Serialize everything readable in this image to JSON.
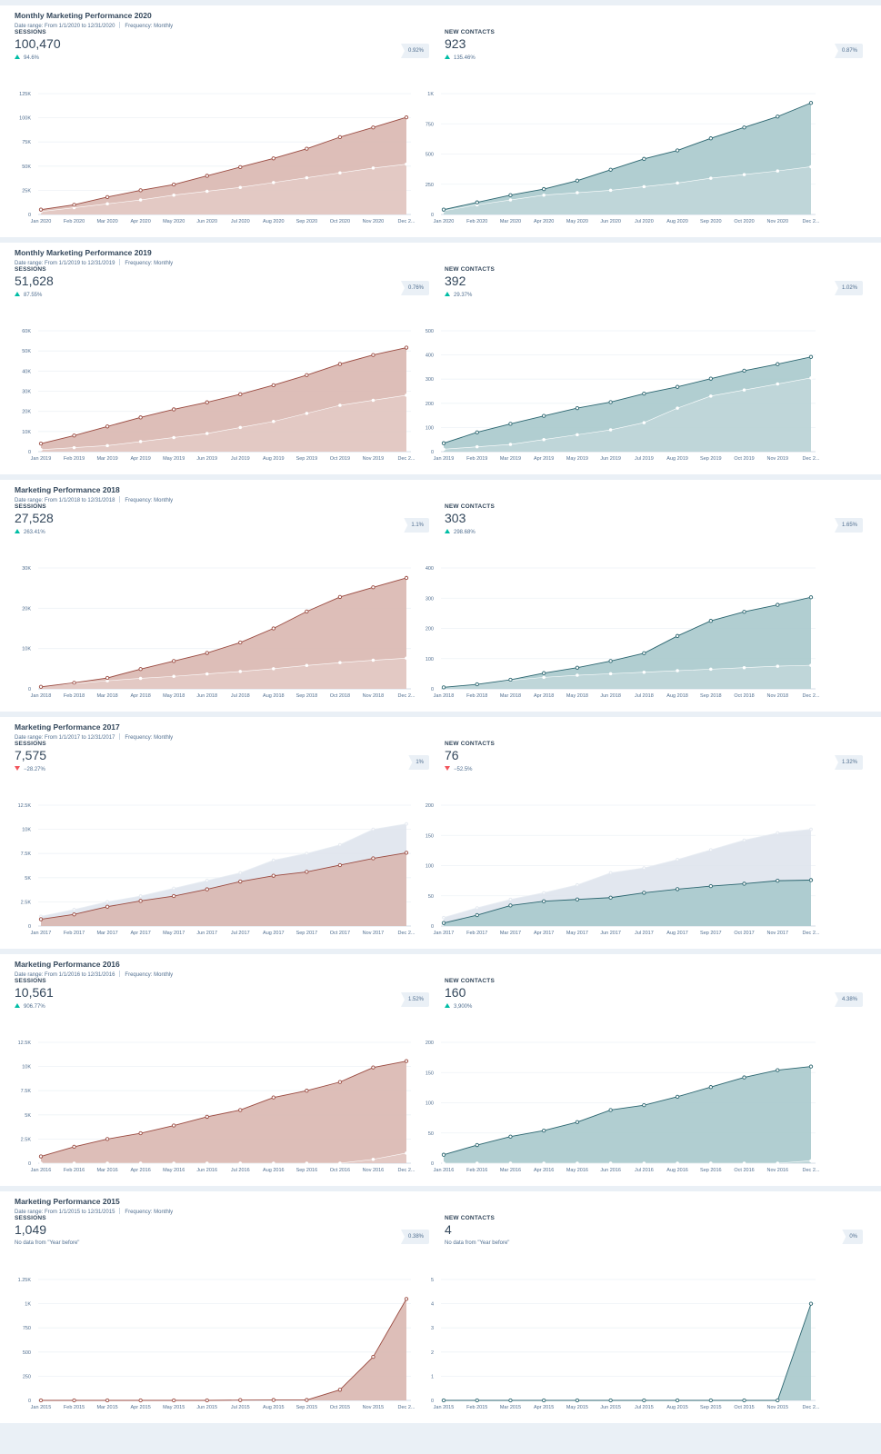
{
  "colors": {
    "sessions_line": "#9a4a40",
    "sessions_fill": "#d9b7b0",
    "contacts_line": "#2c6670",
    "contacts_fill": "#a8c9cc",
    "prev_fill": "#dde3ec",
    "up": "#00bda5",
    "down": "#f2545b"
  },
  "reports": [
    {
      "title": "Monthly Marketing Performance 2020",
      "date_range": "Date range: From 1/1/2020 to 12/31/2020",
      "frequency": "Frequency: Monthly",
      "left": {
        "label": "SESSIONS",
        "value": "100,470",
        "change": "94.6%",
        "direction": "up",
        "note": "",
        "badge": "0.92%"
      },
      "right": {
        "label": "NEW CONTACTS",
        "value": "923",
        "change": "135.46%",
        "direction": "up",
        "note": "",
        "badge": "0.87%"
      }
    },
    {
      "title": "Monthly Marketing Performance 2019",
      "date_range": "Date range: From 1/1/2019 to 12/31/2019",
      "frequency": "Frequency: Monthly",
      "left": {
        "label": "SESSIONS",
        "value": "51,628",
        "change": "87.55%",
        "direction": "up",
        "note": "",
        "badge": "0.76%"
      },
      "right": {
        "label": "NEW CONTACTS",
        "value": "392",
        "change": "29.37%",
        "direction": "up",
        "note": "",
        "badge": "1.02%"
      }
    },
    {
      "title": "Marketing Performance 2018",
      "date_range": "Date range: From 1/1/2018 to 12/31/2018",
      "frequency": "Frequency: Monthly",
      "left": {
        "label": "SESSIONS",
        "value": "27,528",
        "change": "263.41%",
        "direction": "up",
        "note": "",
        "badge": "1.1%"
      },
      "right": {
        "label": "NEW CONTACTS",
        "value": "303",
        "change": "298.68%",
        "direction": "up",
        "note": "",
        "badge": "1.65%"
      }
    },
    {
      "title": "Marketing Performance 2017",
      "date_range": "Date range: From 1/1/2017 to 12/31/2017",
      "frequency": "Frequency: Monthly",
      "left": {
        "label": "SESSIONS",
        "value": "7,575",
        "change": "−28.27%",
        "direction": "down",
        "note": "",
        "badge": "1%"
      },
      "right": {
        "label": "NEW CONTACTS",
        "value": "76",
        "change": "−52.5%",
        "direction": "down",
        "note": "",
        "badge": "1.32%"
      }
    },
    {
      "title": "Marketing Performance 2016",
      "date_range": "Date range: From 1/1/2016 to 12/31/2016",
      "frequency": "Frequency: Monthly",
      "left": {
        "label": "SESSIONS",
        "value": "10,561",
        "change": "906.77%",
        "direction": "up",
        "note": "",
        "badge": "1.52%"
      },
      "right": {
        "label": "NEW CONTACTS",
        "value": "160",
        "change": "3,900%",
        "direction": "up",
        "note": "",
        "badge": "4.38%"
      }
    },
    {
      "title": "Marketing Performance 2015",
      "date_range": "Date range: From 1/1/2015 to 12/31/2015",
      "frequency": "Frequency: Monthly",
      "left": {
        "label": "SESSIONS",
        "value": "1,049",
        "change": "",
        "direction": "",
        "note": "No data from \"Year before\"",
        "badge": "0.38%"
      },
      "right": {
        "label": "NEW CONTACTS",
        "value": "4",
        "change": "",
        "direction": "",
        "note": "No data from \"Year before\"",
        "badge": "0%"
      }
    }
  ],
  "chart_data": [
    {
      "type": "area",
      "metric": "sessions",
      "x": [
        "Jan 2020",
        "Feb 2020",
        "Mar 2020",
        "Apr 2020",
        "May 2020",
        "Jun 2020",
        "Jul 2020",
        "Aug 2020",
        "Sep 2020",
        "Oct 2020",
        "Nov 2020",
        "Dec 2..."
      ],
      "ylim": [
        0,
        125000
      ],
      "yticks": [
        0,
        25000,
        50000,
        75000,
        100000,
        125000
      ],
      "ytick_labels": [
        "0",
        "25K",
        "50K",
        "75K",
        "100K",
        "125K"
      ],
      "series": [
        {
          "values": [
            5000,
            10000,
            18000,
            25000,
            31000,
            40000,
            49000,
            58000,
            68000,
            80000,
            90000,
            100470
          ]
        },
        {
          "values": [
            3000,
            7000,
            11000,
            15000,
            20000,
            24000,
            28000,
            33000,
            38000,
            43000,
            48000,
            52000
          ]
        }
      ]
    },
    {
      "type": "area",
      "metric": "new_contacts",
      "x": [
        "Jan 2020",
        "Feb 2020",
        "Mar 2020",
        "Apr 2020",
        "May 2020",
        "Jun 2020",
        "Jul 2020",
        "Aug 2020",
        "Sep 2020",
        "Oct 2020",
        "Nov 2020",
        "Dec 2..."
      ],
      "ylim": [
        0,
        1000
      ],
      "yticks": [
        0,
        250,
        500,
        750,
        1000
      ],
      "ytick_labels": [
        "0",
        "250",
        "500",
        "750",
        "1K"
      ],
      "series": [
        {
          "values": [
            40,
            100,
            160,
            210,
            280,
            370,
            460,
            530,
            630,
            720,
            810,
            923
          ]
        },
        {
          "values": [
            30,
            80,
            120,
            160,
            180,
            200,
            230,
            260,
            300,
            330,
            360,
            395
          ]
        }
      ]
    },
    {
      "type": "area",
      "metric": "sessions",
      "x": [
        "Jan 2019",
        "Feb 2019",
        "Mar 2019",
        "Apr 2019",
        "May 2019",
        "Jun 2019",
        "Jul 2019",
        "Aug 2019",
        "Sep 2019",
        "Oct 2019",
        "Nov 2019",
        "Dec 2..."
      ],
      "ylim": [
        0,
        60000
      ],
      "yticks": [
        0,
        10000,
        20000,
        30000,
        40000,
        50000,
        60000
      ],
      "ytick_labels": [
        "0",
        "10K",
        "20K",
        "30K",
        "40K",
        "50K",
        "60K"
      ],
      "series": [
        {
          "values": [
            4000,
            8000,
            12500,
            17000,
            21000,
            24500,
            28500,
            33000,
            38000,
            43500,
            48000,
            51628
          ]
        },
        {
          "values": [
            1000,
            2000,
            3000,
            5000,
            7000,
            9000,
            12000,
            15000,
            19000,
            23000,
            25500,
            28000
          ]
        }
      ]
    },
    {
      "type": "area",
      "metric": "new_contacts",
      "x": [
        "Jan 2019",
        "Feb 2019",
        "Mar 2019",
        "Apr 2019",
        "May 2019",
        "Jun 2019",
        "Jul 2019",
        "Aug 2019",
        "Sep 2019",
        "Oct 2019",
        "Nov 2019",
        "Dec 2..."
      ],
      "ylim": [
        0,
        500
      ],
      "yticks": [
        0,
        100,
        200,
        300,
        400,
        500
      ],
      "ytick_labels": [
        "0",
        "100",
        "200",
        "300",
        "400",
        "500"
      ],
      "series": [
        {
          "values": [
            35,
            80,
            115,
            148,
            180,
            205,
            240,
            268,
            302,
            335,
            362,
            392
          ]
        },
        {
          "values": [
            10,
            20,
            30,
            50,
            70,
            90,
            120,
            180,
            230,
            255,
            280,
            305
          ]
        }
      ]
    },
    {
      "type": "area",
      "metric": "sessions",
      "x": [
        "Jan 2018",
        "Feb 2018",
        "Mar 2018",
        "Apr 2018",
        "May 2018",
        "Jun 2018",
        "Jul 2018",
        "Aug 2018",
        "Sep 2018",
        "Oct 2018",
        "Nov 2018",
        "Dec 2..."
      ],
      "ylim": [
        0,
        30000
      ],
      "yticks": [
        0,
        10000,
        20000,
        30000
      ],
      "ytick_labels": [
        "0",
        "10K",
        "20K",
        "30K"
      ],
      "series": [
        {
          "values": [
            500,
            1500,
            2700,
            4900,
            6900,
            8900,
            11500,
            15000,
            19200,
            22800,
            25200,
            27528
          ]
        },
        {
          "values": [
            700,
            1300,
            2000,
            2600,
            3100,
            3700,
            4300,
            5000,
            5800,
            6500,
            7100,
            7600
          ]
        }
      ]
    },
    {
      "type": "area",
      "metric": "new_contacts",
      "x": [
        "Jan 2018",
        "Feb 2018",
        "Mar 2018",
        "Apr 2018",
        "May 2018",
        "Jun 2018",
        "Jul 2018",
        "Aug 2018",
        "Sep 2018",
        "Oct 2018",
        "Nov 2018",
        "Dec 2..."
      ],
      "ylim": [
        0,
        400
      ],
      "yticks": [
        0,
        100,
        200,
        300,
        400
      ],
      "ytick_labels": [
        "0",
        "100",
        "200",
        "300",
        "400"
      ],
      "series": [
        {
          "values": [
            5,
            15,
            30,
            52,
            70,
            92,
            118,
            175,
            225,
            255,
            278,
            303
          ]
        },
        {
          "values": [
            8,
            18,
            28,
            38,
            45,
            50,
            55,
            60,
            65,
            70,
            75,
            78
          ]
        }
      ]
    },
    {
      "type": "area",
      "metric": "sessions",
      "x": [
        "Jan 2017",
        "Feb 2017",
        "Mar 2017",
        "Apr 2017",
        "May 2017",
        "Jun 2017",
        "Jul 2017",
        "Aug 2017",
        "Sep 2017",
        "Oct 2017",
        "Nov 2017",
        "Dec 2..."
      ],
      "ylim": [
        0,
        12500
      ],
      "yticks": [
        0,
        2500,
        5000,
        7500,
        10000,
        12500
      ],
      "ytick_labels": [
        "0",
        "2.5K",
        "5K",
        "7.5K",
        "10K",
        "12.5K"
      ],
      "series": [
        {
          "values": [
            700,
            1200,
            2000,
            2600,
            3100,
            3800,
            4600,
            5200,
            5600,
            6300,
            7000,
            7575
          ]
        },
        {
          "values": [
            1000,
            1700,
            2500,
            3100,
            3900,
            4700,
            5500,
            6800,
            7500,
            8400,
            10000,
            10561
          ]
        }
      ]
    },
    {
      "type": "area",
      "metric": "new_contacts",
      "x": [
        "Jan 2017",
        "Feb 2017",
        "Mar 2017",
        "Apr 2017",
        "May 2017",
        "Jun 2017",
        "Jul 2017",
        "Aug 2017",
        "Sep 2017",
        "Oct 2017",
        "Nov 2017",
        "Dec 2..."
      ],
      "ylim": [
        0,
        200
      ],
      "yticks": [
        0,
        50,
        100,
        150,
        200
      ],
      "ytick_labels": [
        "0",
        "50",
        "100",
        "150",
        "200"
      ],
      "series": [
        {
          "values": [
            5,
            18,
            34,
            41,
            44,
            47,
            55,
            61,
            66,
            70,
            75,
            76
          ]
        },
        {
          "values": [
            14,
            30,
            44,
            55,
            68,
            88,
            96,
            110,
            126,
            142,
            154,
            160
          ]
        }
      ]
    },
    {
      "type": "area",
      "metric": "sessions",
      "x": [
        "Jan 2016",
        "Feb 2016",
        "Mar 2016",
        "Apr 2016",
        "May 2016",
        "Jun 2016",
        "Jul 2016",
        "Aug 2016",
        "Sep 2016",
        "Oct 2016",
        "Nov 2016",
        "Dec 2..."
      ],
      "ylim": [
        0,
        12500
      ],
      "yticks": [
        0,
        2500,
        5000,
        7500,
        10000,
        12500
      ],
      "ytick_labels": [
        "0",
        "2.5K",
        "5K",
        "7.5K",
        "10K",
        "12.5K"
      ],
      "series": [
        {
          "values": [
            700,
            1700,
            2500,
            3100,
            3900,
            4800,
            5500,
            6800,
            7500,
            8400,
            9900,
            10561
          ]
        },
        {
          "values": [
            0,
            0,
            0,
            0,
            0,
            0,
            0,
            0,
            0,
            0,
            400,
            1049
          ]
        }
      ]
    },
    {
      "type": "area",
      "metric": "new_contacts",
      "x": [
        "Jan 2016",
        "Feb 2016",
        "Mar 2016",
        "Apr 2016",
        "May 2016",
        "Jun 2016",
        "Jul 2016",
        "Aug 2016",
        "Sep 2016",
        "Oct 2016",
        "Nov 2016",
        "Dec 2..."
      ],
      "ylim": [
        0,
        200
      ],
      "yticks": [
        0,
        50,
        100,
        150,
        200
      ],
      "ytick_labels": [
        "0",
        "50",
        "100",
        "150",
        "200"
      ],
      "series": [
        {
          "values": [
            14,
            30,
            44,
            54,
            68,
            88,
            96,
            110,
            126,
            142,
            154,
            160
          ]
        },
        {
          "values": [
            0,
            0,
            0,
            0,
            0,
            0,
            0,
            0,
            0,
            0,
            0,
            4
          ]
        }
      ]
    },
    {
      "type": "area",
      "metric": "sessions",
      "x": [
        "Jan 2015",
        "Feb 2015",
        "Mar 2015",
        "Apr 2015",
        "May 2015",
        "Jun 2015",
        "Jul 2015",
        "Aug 2015",
        "Sep 2015",
        "Oct 2015",
        "Nov 2015",
        "Dec 2..."
      ],
      "ylim": [
        0,
        1250
      ],
      "yticks": [
        0,
        250,
        500,
        750,
        1000,
        1250
      ],
      "ytick_labels": [
        "0",
        "250",
        "500",
        "750",
        "1K",
        "1.25K"
      ],
      "series": [
        {
          "values": [
            0,
            0,
            0,
            0,
            0,
            0,
            3,
            4,
            4,
            110,
            450,
            1049
          ]
        }
      ]
    },
    {
      "type": "area",
      "metric": "new_contacts",
      "x": [
        "Jan 2015",
        "Feb 2015",
        "Mar 2015",
        "Apr 2015",
        "May 2015",
        "Jun 2015",
        "Jul 2015",
        "Aug 2015",
        "Sep 2015",
        "Oct 2015",
        "Nov 2015",
        "Dec 2..."
      ],
      "ylim": [
        0,
        5
      ],
      "yticks": [
        0,
        1,
        2,
        3,
        4,
        5
      ],
      "ytick_labels": [
        "0",
        "1",
        "2",
        "3",
        "4",
        "5"
      ],
      "series": [
        {
          "values": [
            0,
            0,
            0,
            0,
            0,
            0,
            0,
            0,
            0,
            0,
            0,
            4
          ]
        }
      ]
    }
  ]
}
